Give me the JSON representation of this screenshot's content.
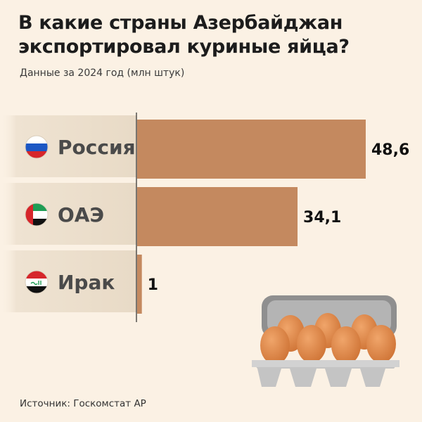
{
  "title": "В какие страны Азербайджан экспортировал куриные яйца?",
  "subtitle": "Данные за 2024 год (млн штук)",
  "source": "Источник: Госкомстат АР",
  "colors": {
    "background": "#fbf1e4",
    "bar": "#c4895f",
    "label_band": "#efe3d2",
    "egg": "#e08a4b",
    "tray": "#b9b9b9"
  },
  "chart_data": {
    "type": "bar",
    "orientation": "horizontal",
    "title": "В какие страны Азербайджан экспортировал куриные яйца?",
    "ylabel": "млн штук",
    "categories": [
      "Россия",
      "ОАЭ",
      "Ирак"
    ],
    "values": [
      48.6,
      34.1,
      1
    ],
    "value_labels": [
      "48,6",
      "34,1",
      "1"
    ],
    "flags": [
      "russia-flag",
      "uae-flag",
      "iraq-flag"
    ],
    "xlim": [
      0,
      48.6
    ]
  }
}
